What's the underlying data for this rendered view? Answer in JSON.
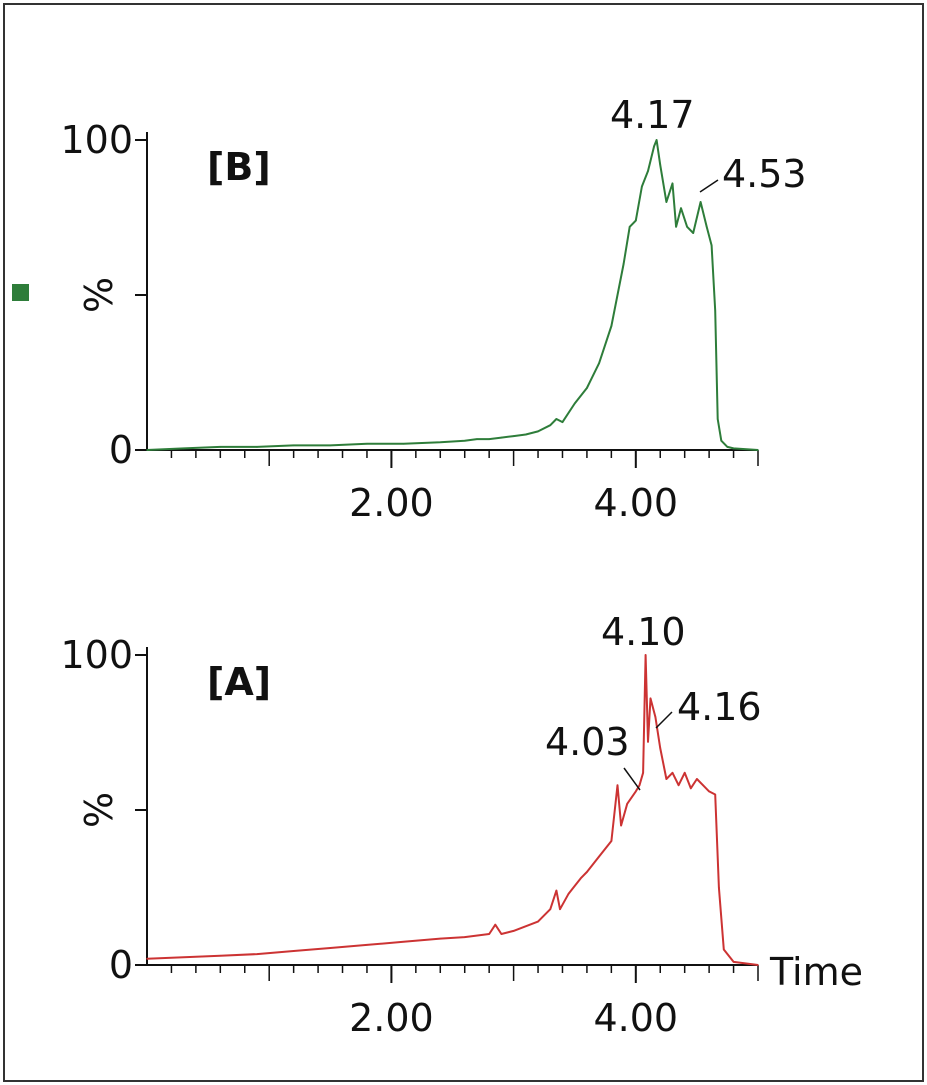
{
  "chart_data": [
    {
      "type": "line",
      "panel_label": "[B]",
      "color": "#2e7d3a",
      "xlabel": "",
      "ylabel": "%",
      "xlim": [
        0,
        5
      ],
      "ylim": [
        0,
        100
      ],
      "x_ticks": [
        {
          "value": 2,
          "label": "2.00"
        },
        {
          "value": 4,
          "label": "4.00"
        }
      ],
      "y_ticks": [
        {
          "value": 0,
          "label": "0"
        },
        {
          "value": 100,
          "label": "100"
        }
      ],
      "legend_marker_color": "#2e7d3a",
      "peaks": [
        {
          "x": 4.17,
          "label": "4.17"
        },
        {
          "x": 4.53,
          "label": "4.53"
        }
      ],
      "series": [
        {
          "x": [
            0.0,
            0.3,
            0.6,
            0.9,
            1.2,
            1.5,
            1.8,
            2.1,
            2.4,
            2.6,
            2.7,
            2.8,
            2.9,
            3.0,
            3.1,
            3.2,
            3.3,
            3.35,
            3.4,
            3.5,
            3.6,
            3.7,
            3.8,
            3.9,
            3.95,
            4.0,
            4.05,
            4.1,
            4.15,
            4.17,
            4.2,
            4.25,
            4.3,
            4.33,
            4.37,
            4.42,
            4.47,
            4.53,
            4.58,
            4.62,
            4.65,
            4.67,
            4.7,
            4.75,
            4.8,
            5.0
          ],
          "values": [
            0,
            0.5,
            1,
            1,
            1.5,
            1.5,
            2,
            2,
            2.5,
            3,
            3.5,
            3.5,
            4,
            4.5,
            5,
            6,
            8,
            10,
            9,
            15,
            20,
            28,
            40,
            60,
            72,
            74,
            85,
            90,
            98,
            100,
            92,
            80,
            86,
            72,
            78,
            72,
            70,
            80,
            72,
            66,
            45,
            10,
            3,
            1,
            0.5,
            0
          ]
        }
      ]
    },
    {
      "type": "line",
      "panel_label": "[A]",
      "color": "#cc3333",
      "xlabel": "Time",
      "ylabel": "%",
      "xlim": [
        0,
        5
      ],
      "ylim": [
        0,
        100
      ],
      "x_ticks": [
        {
          "value": 2,
          "label": "2.00"
        },
        {
          "value": 4,
          "label": "4.00"
        }
      ],
      "y_ticks": [
        {
          "value": 0,
          "label": "0"
        },
        {
          "value": 100,
          "label": "100"
        }
      ],
      "peaks": [
        {
          "x": 4.03,
          "label": "4.03"
        },
        {
          "x": 4.1,
          "label": "4.10"
        },
        {
          "x": 4.16,
          "label": "4.16"
        }
      ],
      "series": [
        {
          "x": [
            0.0,
            0.3,
            0.6,
            0.9,
            1.2,
            1.5,
            1.8,
            2.1,
            2.4,
            2.6,
            2.8,
            2.85,
            2.9,
            3.0,
            3.2,
            3.3,
            3.35,
            3.38,
            3.45,
            3.55,
            3.6,
            3.7,
            3.8,
            3.85,
            3.88,
            3.93,
            4.0,
            4.03,
            4.06,
            4.08,
            4.1,
            4.12,
            4.16,
            4.2,
            4.25,
            4.3,
            4.35,
            4.4,
            4.45,
            4.5,
            4.55,
            4.6,
            4.65,
            4.68,
            4.72,
            4.8,
            5.0
          ],
          "values": [
            2,
            2.5,
            3,
            3.5,
            4.5,
            5.5,
            6.5,
            7.5,
            8.5,
            9,
            10,
            13,
            10,
            11,
            14,
            18,
            24,
            18,
            23,
            28,
            30,
            35,
            40,
            58,
            45,
            52,
            56,
            58,
            62,
            100,
            72,
            86,
            80,
            70,
            60,
            62,
            58,
            62,
            57,
            60,
            58,
            56,
            55,
            25,
            5,
            1,
            0
          ]
        }
      ]
    }
  ]
}
